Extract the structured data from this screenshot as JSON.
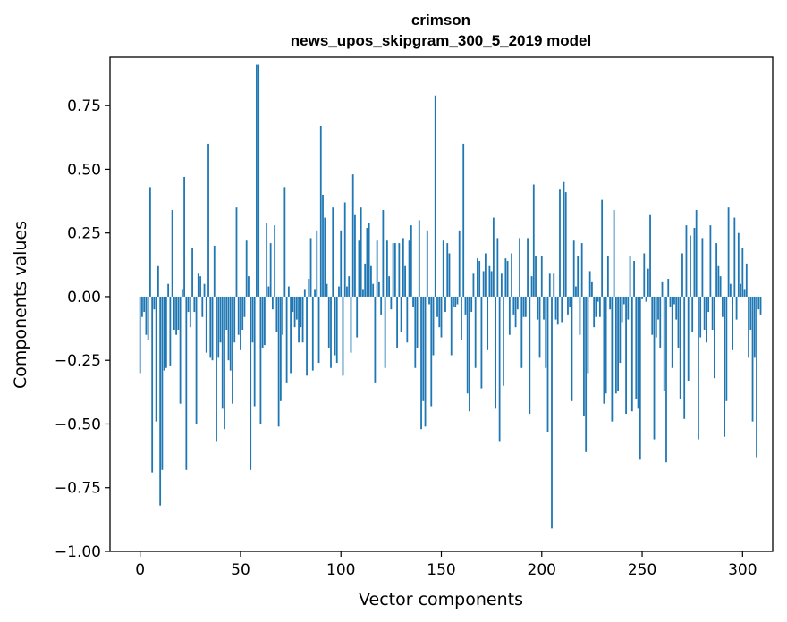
{
  "chart_data": {
    "type": "bar",
    "title": "crimson",
    "subtitle": "news_upos_skipgram_300_5_2019 model",
    "xlabel": "Vector components",
    "ylabel": "Components values",
    "xlim": [
      -15,
      315
    ],
    "ylim": [
      -1.0,
      0.94
    ],
    "xticks": [
      0,
      50,
      100,
      150,
      200,
      250,
      300
    ],
    "yticks": [
      -1.0,
      -0.75,
      -0.5,
      -0.25,
      0.0,
      0.25,
      0.5,
      0.75
    ],
    "xtick_labels": [
      "0",
      "50",
      "100",
      "150",
      "200",
      "250",
      "300"
    ],
    "ytick_labels": [
      "−1.00",
      "−0.75",
      "−0.50",
      "−0.25",
      "0.00",
      "0.25",
      "0.50",
      "0.75"
    ],
    "grid": false,
    "bar_color": "#1f77b4",
    "series": [
      {
        "values": [
          -0.3,
          -0.08,
          -0.06,
          -0.15,
          -0.17,
          0.43,
          -0.69,
          -0.05,
          -0.49,
          0.12,
          -0.82,
          -0.68,
          -0.29,
          -0.28,
          0.05,
          -0.27,
          0.34,
          -0.13,
          -0.15,
          -0.13,
          -0.42,
          0.03,
          0.47,
          -0.68,
          -0.06,
          -0.12,
          0.19,
          -0.06,
          -0.5,
          0.09,
          0.08,
          -0.08,
          0.05,
          -0.22,
          0.6,
          -0.24,
          -0.25,
          0.2,
          -0.57,
          -0.24,
          -0.18,
          -0.44,
          -0.52,
          -0.13,
          -0.25,
          -0.29,
          -0.42,
          -0.18,
          0.35,
          -0.15,
          -0.21,
          -0.13,
          -0.08,
          0.22,
          0.08,
          -0.68,
          -0.18,
          -0.43,
          0.91,
          0.91,
          -0.5,
          -0.2,
          -0.19,
          0.29,
          0.04,
          0.21,
          -0.05,
          0.28,
          -0.14,
          -0.51,
          -0.41,
          -0.15,
          0.43,
          -0.34,
          0.04,
          -0.3,
          -0.06,
          -0.12,
          -0.09,
          -0.18,
          -0.12,
          -0.18,
          0.03,
          -0.31,
          0.07,
          0.23,
          -0.29,
          0.03,
          0.26,
          -0.26,
          0.67,
          0.4,
          0.31,
          0.05,
          -0.2,
          -0.28,
          0.35,
          -0.23,
          -0.26,
          0.04,
          0.26,
          -0.31,
          0.37,
          0.04,
          0.08,
          -0.22,
          0.48,
          0.32,
          -0.16,
          0.22,
          0.35,
          0.03,
          0.13,
          0.27,
          0.29,
          0.12,
          0.05,
          -0.34,
          0.22,
          0.06,
          -0.07,
          0.34,
          -0.28,
          0.22,
          0.08,
          -0.05,
          0.21,
          0.21,
          -0.2,
          0.21,
          -0.14,
          0.23,
          0.12,
          -0.18,
          0.22,
          0.28,
          -0.04,
          -0.28,
          -0.2,
          0.3,
          -0.52,
          -0.41,
          -0.51,
          0.26,
          -0.03,
          -0.43,
          -0.23,
          0.79,
          -0.08,
          -0.12,
          -0.16,
          0.22,
          -0.06,
          0.21,
          0.17,
          -0.23,
          -0.04,
          -0.04,
          -0.03,
          0.26,
          -0.17,
          0.6,
          -0.07,
          -0.38,
          -0.45,
          -0.06,
          0.09,
          -0.28,
          0.15,
          0.14,
          -0.36,
          0.1,
          0.17,
          -0.21,
          0.12,
          0.1,
          0.31,
          -0.44,
          0.23,
          -0.57,
          0.09,
          -0.35,
          0.15,
          0.14,
          -0.15,
          0.17,
          -0.07,
          -0.12,
          -0.05,
          0.23,
          -0.28,
          -0.08,
          -0.08,
          0.23,
          -0.46,
          0.08,
          0.44,
          0.16,
          -0.09,
          -0.24,
          0.16,
          -0.09,
          -0.28,
          -0.53,
          0.09,
          -0.91,
          0.09,
          -0.09,
          -0.11,
          0.42,
          -0.1,
          0.45,
          0.41,
          -0.07,
          -0.04,
          -0.41,
          0.22,
          0.04,
          0.16,
          -0.15,
          0.21,
          -0.47,
          -0.61,
          -0.3,
          0.1,
          0.06,
          -0.12,
          -0.08,
          -0.02,
          -0.08,
          0.38,
          -0.42,
          -0.38,
          0.16,
          -0.05,
          -0.49,
          0.34,
          -0.38,
          -0.37,
          -0.26,
          -0.1,
          -0.03,
          -0.46,
          -0.09,
          0.16,
          -0.45,
          0.14,
          -0.4,
          -0.44,
          -0.64,
          -0.01,
          0.17,
          -0.02,
          0.11,
          0.32,
          -0.15,
          -0.56,
          -0.16,
          -0.09,
          -0.2,
          0.06,
          -0.37,
          -0.65,
          0.07,
          -0.04,
          -0.28,
          -0.03,
          -0.09,
          -0.2,
          -0.4,
          0.17,
          -0.48,
          0.28,
          -0.33,
          0.24,
          -0.14,
          0.27,
          0.34,
          -0.56,
          -0.16,
          0.23,
          -0.13,
          -0.18,
          -0.06,
          0.28,
          -0.13,
          -0.32,
          0.21,
          0.12,
          0.08,
          -0.08,
          -0.55,
          -0.41,
          0.35,
          0.05,
          -0.21,
          0.31,
          -0.09,
          0.25,
          0.05,
          0.19,
          0.03,
          0.13,
          -0.24,
          -0.13,
          -0.49,
          -0.24,
          -0.63,
          -0.05,
          -0.07
        ]
      }
    ]
  }
}
